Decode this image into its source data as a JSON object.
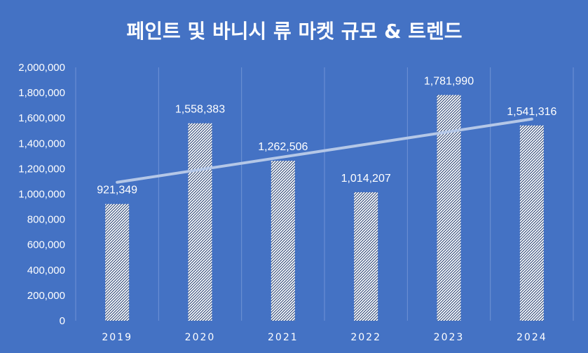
{
  "chart_data": {
    "type": "bar",
    "title": "페인트 및 바니시 류 마켓 규모 & 트렌드",
    "categories": [
      "2019",
      "2020",
      "2021",
      "2022",
      "2023",
      "2024"
    ],
    "series": [
      {
        "values": [
          921349,
          1558383,
          1262506,
          1014207,
          1781990,
          1541316
        ]
      }
    ],
    "data_labels": [
      "921,349",
      "1,558,383",
      "1,262,506",
      "1,014,207",
      "1,781,990",
      "1,541,316"
    ],
    "yticks": [
      0,
      200000,
      400000,
      600000,
      800000,
      1000000,
      1200000,
      1400000,
      1600000,
      1800000,
      2000000
    ],
    "ytick_labels": [
      "0",
      "200,000",
      "400,000",
      "600,000",
      "800,000",
      "1,000,000",
      "1,200,000",
      "1,400,000",
      "1,600,000",
      "1,800,000",
      "2,000,000"
    ],
    "ylim": [
      0,
      2000000
    ],
    "grid": "vertical",
    "trendline": {
      "type": "linear",
      "start": 1093000,
      "end": 1592000
    },
    "xlabel": "",
    "ylabel": "",
    "colors": {
      "background": "#4472C4",
      "bar_fill": "#ffffff",
      "bar_pattern": "#1F3A6E",
      "trendline": "#B4C7E7",
      "text": "#ffffff"
    }
  }
}
